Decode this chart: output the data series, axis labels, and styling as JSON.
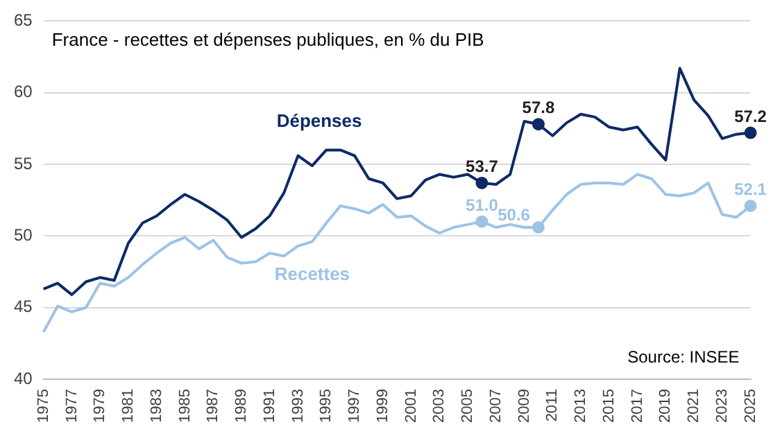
{
  "chart_data": {
    "type": "line",
    "title": "France - recettes et dépenses publiques, en % du PIB",
    "categories": [
      "1975",
      null,
      "1977",
      null,
      "1979",
      null,
      "1981",
      null,
      "1983",
      null,
      "1985",
      null,
      "1987",
      null,
      "1989",
      null,
      "1991",
      null,
      "1993",
      null,
      "1995",
      null,
      "1997",
      null,
      "1999",
      null,
      "2001",
      null,
      "2003",
      null,
      "2005",
      null,
      "2007",
      null,
      "2009",
      null,
      "2011",
      null,
      "2013",
      null,
      "2015",
      null,
      "2017",
      null,
      "2019",
      null,
      "2021",
      null,
      "2023",
      null,
      "2025"
    ],
    "series": [
      {
        "name": "Dépenses",
        "color": "#0e2a66",
        "values": [
          46.3,
          46.7,
          45.9,
          46.8,
          47.1,
          46.9,
          49.5,
          50.9,
          51.4,
          52.2,
          52.9,
          52.4,
          51.8,
          51.1,
          49.9,
          50.5,
          51.4,
          53.0,
          55.6,
          54.9,
          56.0,
          56.0,
          55.6,
          54.0,
          53.7,
          52.6,
          52.8,
          53.9,
          54.3,
          54.1,
          54.3,
          53.7,
          53.6,
          54.3,
          58.0,
          57.8,
          57.0,
          57.9,
          58.5,
          58.3,
          57.6,
          57.4,
          57.6,
          56.4,
          55.3,
          61.7,
          59.5,
          58.4,
          56.8,
          57.1,
          57.2
        ],
        "value_labels": [
          null,
          null,
          null,
          null,
          null,
          null,
          null,
          null,
          null,
          null,
          null,
          null,
          null,
          null,
          null,
          null,
          null,
          null,
          null,
          null,
          null,
          null,
          null,
          null,
          null,
          null,
          null,
          null,
          null,
          null,
          null,
          "53.7",
          null,
          null,
          null,
          "57.8",
          null,
          null,
          null,
          null,
          null,
          null,
          null,
          null,
          null,
          null,
          null,
          null,
          null,
          null,
          "57.2"
        ]
      },
      {
        "name": "Recettes",
        "color": "#9dc3e6",
        "values": [
          43.3,
          45.1,
          44.7,
          45.0,
          46.7,
          46.5,
          47.1,
          48.0,
          48.8,
          49.5,
          49.9,
          49.1,
          49.7,
          48.5,
          48.1,
          48.2,
          48.8,
          48.6,
          49.3,
          49.6,
          50.9,
          52.1,
          51.9,
          51.6,
          52.2,
          51.3,
          51.4,
          50.7,
          50.2,
          50.6,
          50.8,
          51.0,
          50.6,
          50.8,
          50.6,
          50.6,
          51.8,
          52.9,
          53.6,
          53.7,
          53.7,
          53.6,
          54.3,
          54.0,
          52.9,
          52.8,
          53.0,
          53.7,
          51.5,
          51.3,
          52.1
        ],
        "value_labels": [
          null,
          null,
          null,
          null,
          null,
          null,
          null,
          null,
          null,
          null,
          null,
          null,
          null,
          null,
          null,
          null,
          null,
          null,
          null,
          null,
          null,
          null,
          null,
          null,
          null,
          null,
          null,
          null,
          null,
          null,
          null,
          "51.0",
          null,
          null,
          null,
          "50.6",
          null,
          null,
          null,
          null,
          null,
          null,
          null,
          null,
          null,
          null,
          null,
          null,
          null,
          null,
          "52.1"
        ]
      }
    ],
    "ylim": [
      40,
      65
    ],
    "yticks": [
      40,
      45,
      50,
      55,
      60,
      65
    ],
    "grid": "y",
    "annotations": [
      "Source: INSEE"
    ]
  }
}
